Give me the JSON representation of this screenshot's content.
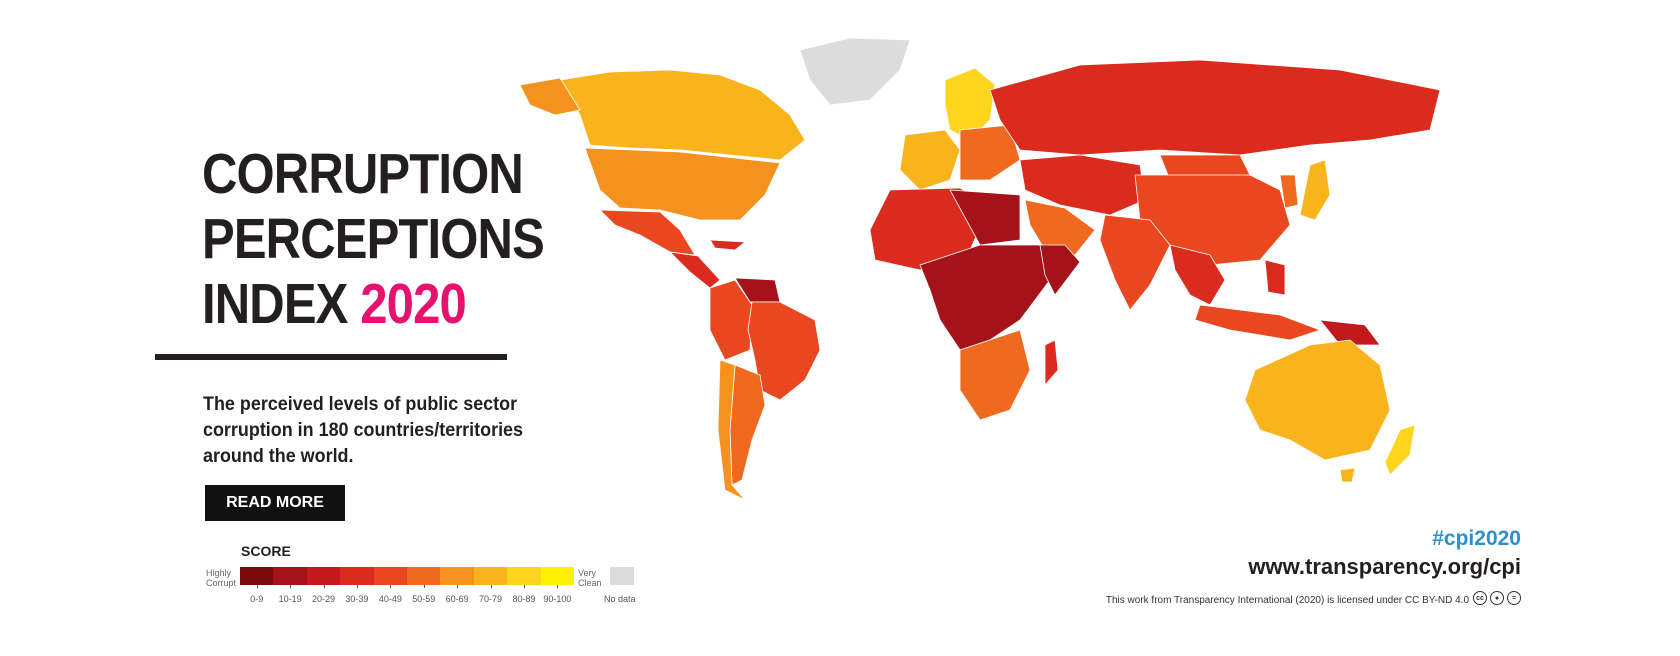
{
  "title": {
    "line1": "CORRUPTION",
    "line2": "PERCEPTIONS",
    "line3_prefix": "INDEX ",
    "year": "2020"
  },
  "description": "The perceived levels of public sector corruption in 180 countries/territories around the world.",
  "cta": {
    "read_more_label": "READ MORE"
  },
  "legend": {
    "title": "SCORE",
    "low_label_1": "Highly",
    "low_label_2": "Corrupt",
    "high_label_1": "Very",
    "high_label_2": "Clean",
    "ranges": [
      "0-9",
      "10-19",
      "20-29",
      "30-39",
      "40-49",
      "50-59",
      "60-69",
      "70-79",
      "80-89",
      "90-100"
    ],
    "colors": [
      "#7a0a0c",
      "#a5121a",
      "#c4191c",
      "#db2a1e",
      "#e8471f",
      "#ef6a1f",
      "#f5921e",
      "#f9b41d",
      "#fcd51c",
      "#fff200"
    ],
    "no_data_label": "No data",
    "no_data_color": "#dcdcdc"
  },
  "footer": {
    "hashtag": "#cpi2020",
    "url": "www.transparency.org/cpi",
    "license": "This work from Transparency International (2020) is licensed under CC BY-ND 4.0",
    "cc_icons": [
      "cc-icon",
      "by-icon",
      "nd-icon"
    ]
  },
  "map": {
    "region_colors": {
      "greenland": "#dcdcdc",
      "canada": "#f9b41d",
      "usa": "#f5921e",
      "mexico": "#e8471f",
      "central_america": "#db2a1e",
      "venezuela": "#a5121a",
      "south_america": "#e8471f",
      "brazil": "#e8471f",
      "chile": "#f5921e",
      "argentina": "#ef6a1f",
      "nordics": "#fcd51c",
      "western_europe": "#f9b41d",
      "eastern_europe": "#ef6a1f",
      "russia": "#db2a1e",
      "middle_east": "#db2a1e",
      "arabia": "#ef6a1f",
      "north_africa": "#db2a1e",
      "libya": "#a5121a",
      "central_africa": "#a5121a",
      "south_africa": "#ef6a1f",
      "madagascar": "#db2a1e",
      "china": "#e8471f",
      "mongolia": "#e8471f",
      "india": "#e8471f",
      "southeast_asia": "#db2a1e",
      "japan": "#f9b41d",
      "korea": "#ef6a1f",
      "indonesia": "#e8471f",
      "png": "#c4191c",
      "australia": "#f9b41d",
      "new_zealand": "#fcd51c"
    }
  }
}
